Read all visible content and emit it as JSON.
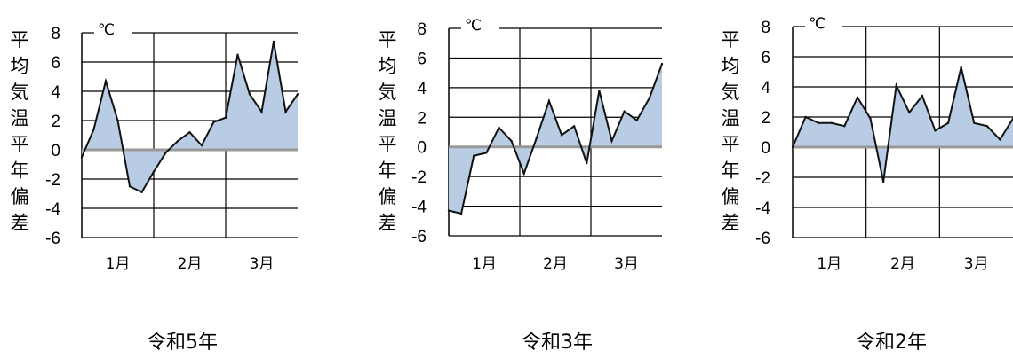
{
  "chart_data": [
    {
      "type": "area",
      "caption": "令和5年",
      "ylabel": "平均気温平年偏差",
      "unit": "℃",
      "ylim": [
        -6,
        8
      ],
      "yticks": [
        "8",
        "6",
        "4",
        "2",
        "0",
        "-2",
        "-4",
        "-6"
      ],
      "months": [
        "1月",
        "2月",
        "3月"
      ],
      "grid": true,
      "values": [
        -0.5,
        1.4,
        4.7,
        2.0,
        -2.5,
        -2.9,
        -1.5,
        -0.2,
        0.6,
        1.2,
        0.3,
        1.9,
        2.2,
        6.5,
        3.8,
        2.6,
        7.4,
        2.6,
        3.8
      ]
    },
    {
      "type": "area",
      "caption": "令和3年",
      "ylabel": "平均気温平年偏差",
      "unit": "℃",
      "ylim": [
        -6,
        8
      ],
      "yticks": [
        "8",
        "6",
        "4",
        "2",
        "0",
        "-2",
        "-4",
        "-6"
      ],
      "months": [
        "1月",
        "2月",
        "3月"
      ],
      "grid": true,
      "values": [
        -4.3,
        -4.5,
        -0.6,
        -0.4,
        1.3,
        0.4,
        -1.8,
        0.6,
        3.1,
        0.8,
        1.4,
        -1.1,
        3.8,
        0.4,
        2.4,
        1.8,
        3.3,
        5.6
      ]
    },
    {
      "type": "area",
      "caption": "令和2年",
      "ylabel": "平均気温平年偏差",
      "unit": "℃",
      "ylim": [
        -6,
        8
      ],
      "yticks": [
        "8",
        "6",
        "4",
        "2",
        "0",
        "-2",
        "-4",
        "-6"
      ],
      "months": [
        "1月",
        "2月",
        "3月"
      ],
      "grid": true,
      "values": [
        0.0,
        2.0,
        1.6,
        1.6,
        1.4,
        3.3,
        1.9,
        -2.3,
        4.1,
        2.3,
        3.4,
        1.1,
        1.6,
        5.3,
        1.6,
        1.4,
        0.5,
        1.9
      ]
    }
  ]
}
